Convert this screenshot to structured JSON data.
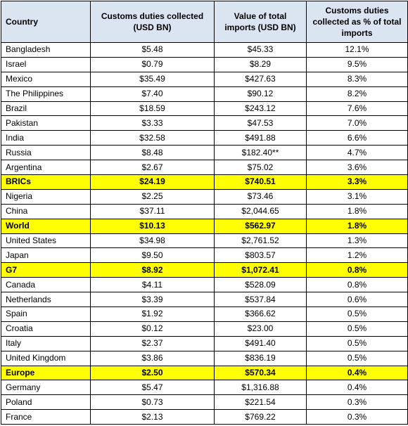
{
  "table": {
    "headers": [
      "Country",
      "Customs duties collected (USD BN)",
      "Value of total imports (USD BN)",
      "Customs duties collected as % of total imports"
    ],
    "rows": [
      {
        "country": "Bangladesh",
        "duties": "$5.48",
        "imports": "$45.33",
        "pct": "12.1%",
        "highlight": false
      },
      {
        "country": "Israel",
        "duties": "$0.79",
        "imports": "$8.29",
        "pct": "9.5%",
        "highlight": false
      },
      {
        "country": "Mexico",
        "duties": "$35.49",
        "imports": "$427.63",
        "pct": "8.3%",
        "highlight": false
      },
      {
        "country": "The Philippines",
        "duties": "$7.40",
        "imports": "$90.12",
        "pct": "8.2%",
        "highlight": false
      },
      {
        "country": "Brazil",
        "duties": "$18.59",
        "imports": "$243.12",
        "pct": "7.6%",
        "highlight": false
      },
      {
        "country": "Pakistan",
        "duties": "$3.33",
        "imports": "$47.53",
        "pct": "7.0%",
        "highlight": false
      },
      {
        "country": "India",
        "duties": "$32.58",
        "imports": "$491.88",
        "pct": "6.6%",
        "highlight": false
      },
      {
        "country": "Russia",
        "duties": "$8.48",
        "imports": "$182.40**",
        "pct": "4.7%",
        "highlight": false
      },
      {
        "country": "Argentina",
        "duties": "$2.67",
        "imports": "$75.02",
        "pct": "3.6%",
        "highlight": false
      },
      {
        "country": "BRICs",
        "duties": "$24.19",
        "imports": "$740.51",
        "pct": "3.3%",
        "highlight": true
      },
      {
        "country": "Nigeria",
        "duties": "$2.25",
        "imports": "$73.46",
        "pct": "3.1%",
        "highlight": false
      },
      {
        "country": "China",
        "duties": "$37.11",
        "imports": "$2,044.65",
        "pct": "1.8%",
        "highlight": false
      },
      {
        "country": "World",
        "duties": "$10.13",
        "imports": "$562.97",
        "pct": "1.8%",
        "highlight": true
      },
      {
        "country": "United States",
        "duties": "$34.98",
        "imports": "$2,761.52",
        "pct": "1.3%",
        "highlight": false
      },
      {
        "country": "Japan",
        "duties": "$9.50",
        "imports": "$803.57",
        "pct": "1.2%",
        "highlight": false
      },
      {
        "country": "G7",
        "duties": "$8.92",
        "imports": "$1,072.41",
        "pct": "0.8%",
        "highlight": true
      },
      {
        "country": "Canada",
        "duties": "$4.11",
        "imports": "$528.09",
        "pct": "0.8%",
        "highlight": false
      },
      {
        "country": "Netherlands",
        "duties": "$3.39",
        "imports": "$537.84",
        "pct": "0.6%",
        "highlight": false
      },
      {
        "country": "Spain",
        "duties": "$1.92",
        "imports": "$366.62",
        "pct": "0.5%",
        "highlight": false
      },
      {
        "country": "Croatia",
        "duties": "$0.12",
        "imports": "$23.00",
        "pct": "0.5%",
        "highlight": false
      },
      {
        "country": "Italy",
        "duties": "$2.37",
        "imports": "$491.40",
        "pct": "0.5%",
        "highlight": false
      },
      {
        "country": "United Kingdom",
        "duties": "$3.86",
        "imports": "$836.19",
        "pct": "0.5%",
        "highlight": false
      },
      {
        "country": "Europe",
        "duties": "$2.50",
        "imports": "$570.34",
        "pct": "0.4%",
        "highlight": true
      },
      {
        "country": "Germany",
        "duties": "$5.47",
        "imports": "$1,316.88",
        "pct": "0.4%",
        "highlight": false
      },
      {
        "country": "Poland",
        "duties": "$0.73",
        "imports": "$221.54",
        "pct": "0.3%",
        "highlight": false
      },
      {
        "country": "France",
        "duties": "$2.13",
        "imports": "$769.22",
        "pct": "0.3%",
        "highlight": false
      }
    ]
  },
  "colors": {
    "header_bg": "#dbe5f1",
    "highlight_bg": "#ffff00",
    "border": "#000000"
  }
}
